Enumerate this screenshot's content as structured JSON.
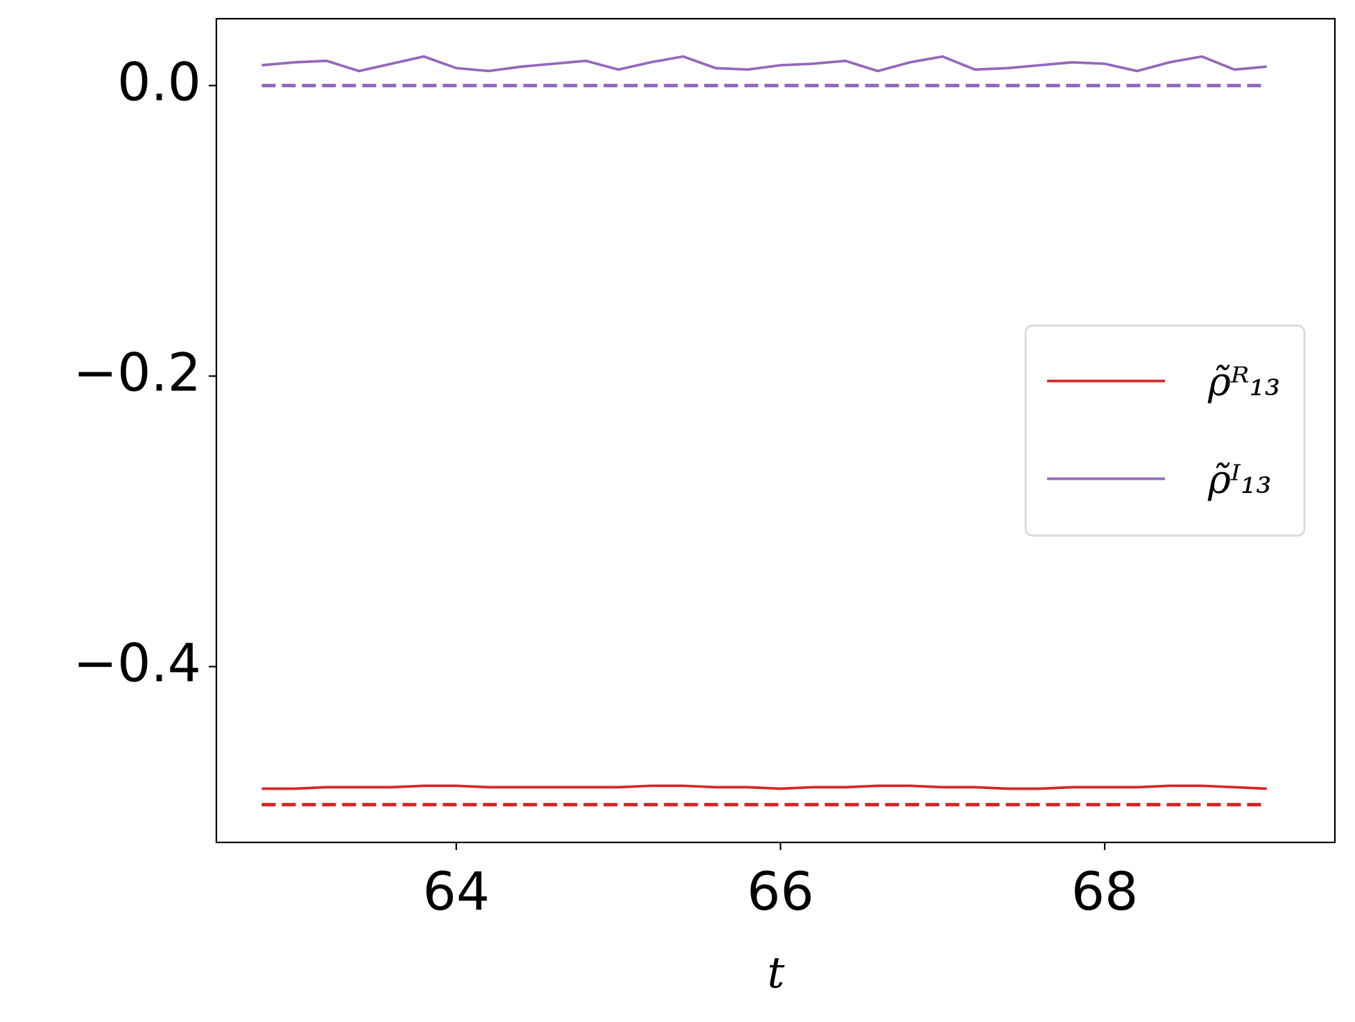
{
  "chart_data": {
    "type": "line",
    "x_label": "t",
    "x": [
      62.8,
      63.0,
      63.2,
      63.4,
      63.6,
      63.8,
      64.0,
      64.2,
      64.4,
      64.6,
      64.8,
      65.0,
      65.2,
      65.4,
      65.6,
      65.8,
      66.0,
      66.2,
      66.4,
      66.6,
      66.8,
      67.0,
      67.2,
      67.4,
      67.6,
      67.8,
      68.0,
      68.2,
      68.4,
      68.6,
      68.8,
      69.0
    ],
    "series": [
      {
        "name": "ρ̃ᴿ₁₃",
        "color": "#d62728",
        "dashed": false,
        "values": [
          -0.484,
          -0.484,
          -0.483,
          -0.483,
          -0.483,
          -0.482,
          -0.482,
          -0.483,
          -0.483,
          -0.483,
          -0.483,
          -0.483,
          -0.482,
          -0.482,
          -0.483,
          -0.483,
          -0.484,
          -0.483,
          -0.483,
          -0.482,
          -0.482,
          -0.483,
          -0.483,
          -0.484,
          -0.484,
          -0.483,
          -0.483,
          -0.483,
          -0.482,
          -0.482,
          -0.483,
          -0.484
        ]
      },
      {
        "name": "ρ̃ᴵ₁₃",
        "color": "#9467bd",
        "dashed": false,
        "values": [
          0.014,
          0.016,
          0.017,
          0.01,
          0.015,
          0.02,
          0.012,
          0.01,
          0.013,
          0.015,
          0.017,
          0.011,
          0.016,
          0.02,
          0.012,
          0.011,
          0.014,
          0.015,
          0.017,
          0.01,
          0.016,
          0.02,
          0.011,
          0.012,
          0.014,
          0.016,
          0.015,
          0.01,
          0.016,
          0.02,
          0.011,
          0.013
        ]
      },
      {
        "color": "#d62728",
        "dashed": true,
        "values": [
          -0.495,
          -0.495,
          -0.495,
          -0.495,
          -0.495,
          -0.495,
          -0.495,
          -0.495,
          -0.495,
          -0.495,
          -0.495,
          -0.495,
          -0.495,
          -0.495,
          -0.495,
          -0.495,
          -0.495,
          -0.495,
          -0.495,
          -0.495,
          -0.495,
          -0.495,
          -0.495,
          -0.495,
          -0.495,
          -0.495,
          -0.495,
          -0.495,
          -0.495,
          -0.495,
          -0.495,
          -0.495
        ]
      },
      {
        "color": "#9467bd",
        "dashed": true,
        "values": [
          0,
          0,
          0,
          0,
          0,
          0,
          0,
          0,
          0,
          0,
          0,
          0,
          0,
          0,
          0,
          0,
          0,
          0,
          0,
          0,
          0,
          0,
          0,
          0,
          0,
          0,
          0,
          0,
          0,
          0,
          0,
          0
        ]
      }
    ],
    "xlim": [
      62.52,
      69.42
    ],
    "ylim": [
      -0.521,
      0.046
    ],
    "xticks": [
      64,
      66,
      68
    ],
    "yticks": [
      {
        "value": 0,
        "label": "0.0"
      },
      {
        "value": -0.2,
        "label": "−0.2"
      },
      {
        "value": -0.4,
        "label": "−0.4"
      }
    ],
    "grid": false,
    "legend": "center right"
  }
}
